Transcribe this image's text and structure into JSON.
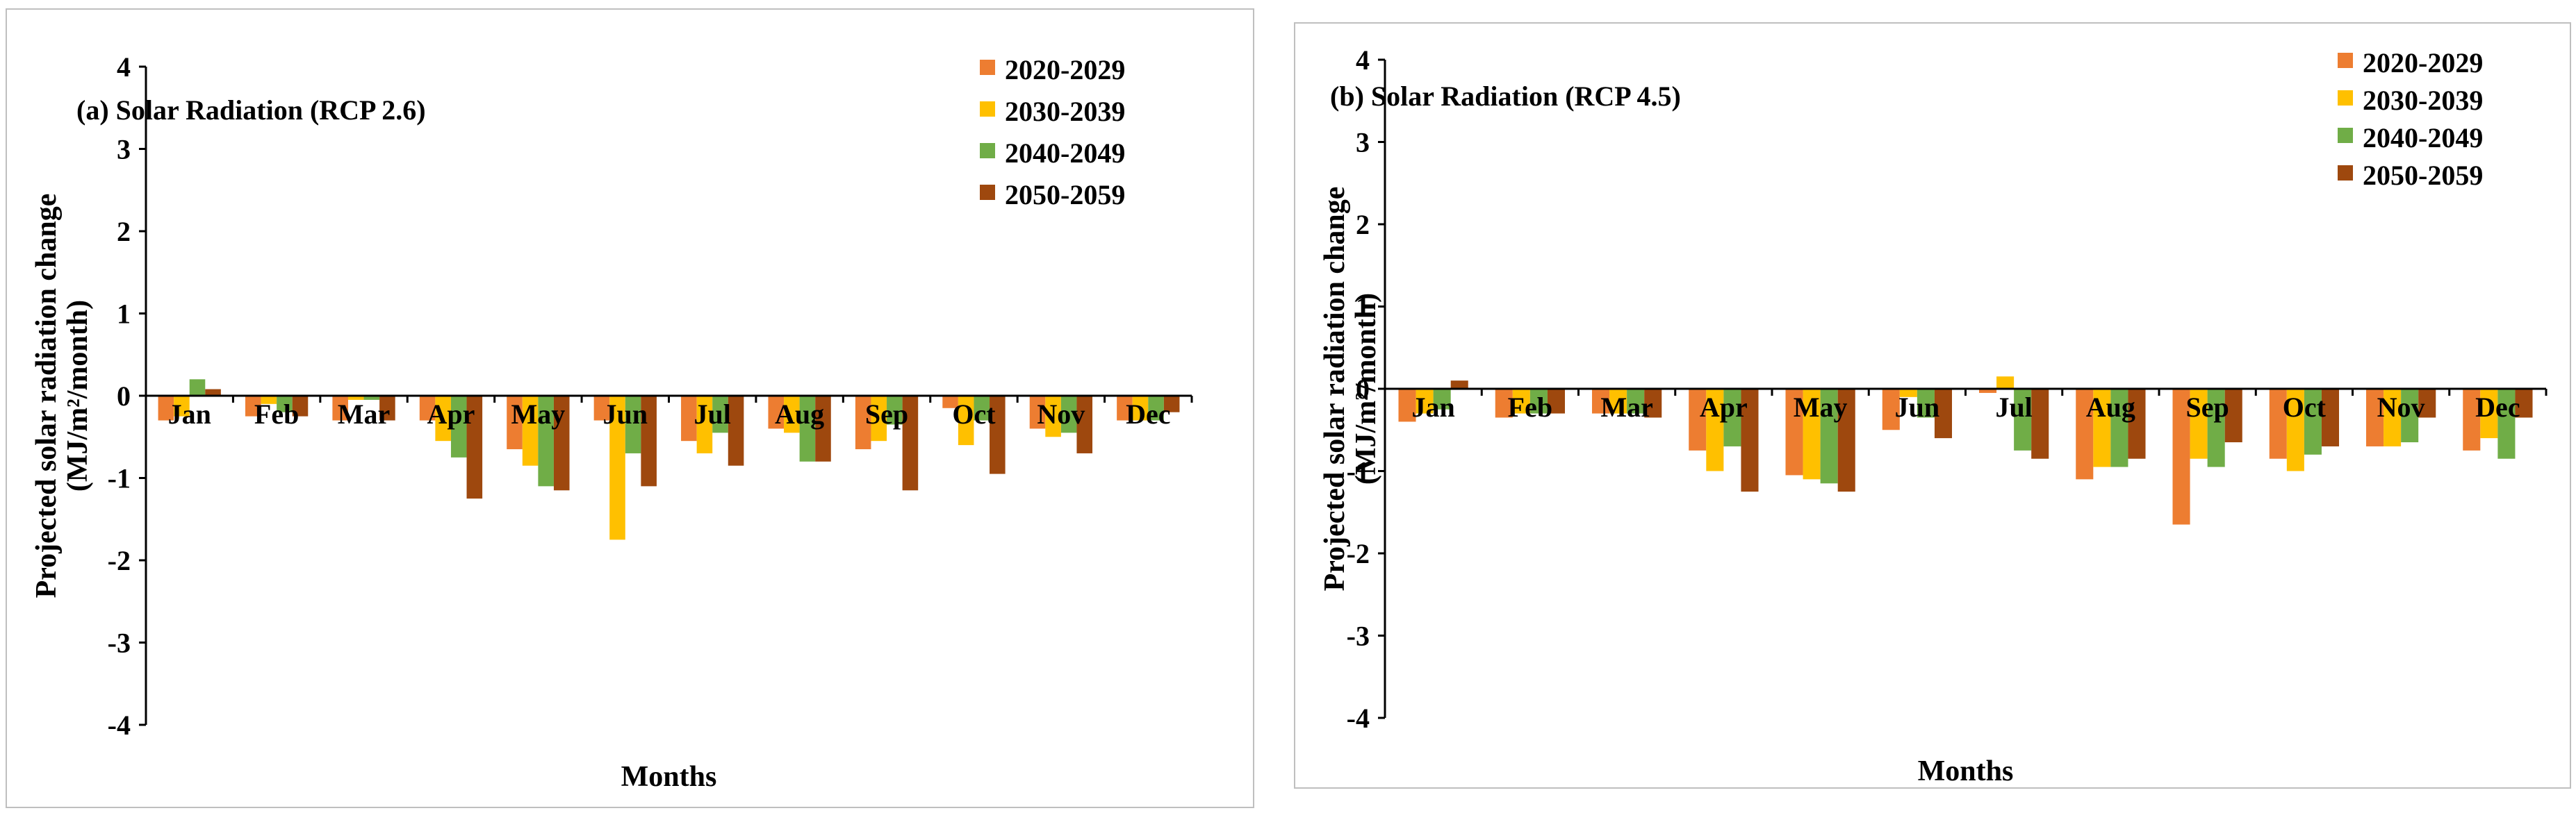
{
  "chart_data": [
    {
      "type": "bar",
      "title": "(a) Solar Radiation (RCP 2.6)",
      "xlabel": "Months",
      "ylabel": "Projected solar radiation change",
      "ylabel_units": "(MJ/m²/month)",
      "ylim": [
        -4,
        4
      ],
      "yticks": [
        "4",
        "3",
        "2",
        "1",
        "0",
        "-1",
        "-2",
        "-3",
        "-4"
      ],
      "categories": [
        "Jan",
        "Feb",
        "Mar",
        "Apr",
        "May",
        "Jun",
        "Jul",
        "Aug",
        "Sep",
        "Oct",
        "Nov",
        "Dec"
      ],
      "series": [
        {
          "name": "2020-2029",
          "color": "#ED7D31",
          "values": [
            -0.3,
            -0.25,
            -0.3,
            -0.3,
            -0.65,
            -0.3,
            -0.55,
            -0.4,
            -0.65,
            -0.15,
            -0.4,
            -0.3
          ]
        },
        {
          "name": "2030-2039",
          "color": "#FFC000",
          "values": [
            -0.25,
            -0.1,
            -0.05,
            -0.55,
            -0.85,
            -1.75,
            -0.7,
            -0.45,
            -0.55,
            -0.6,
            -0.5,
            -0.3
          ]
        },
        {
          "name": "2040-2049",
          "color": "#70AD47",
          "values": [
            0.2,
            -0.2,
            -0.05,
            -0.75,
            -1.1,
            -0.7,
            -0.45,
            -0.8,
            -0.35,
            -0.3,
            -0.45,
            -0.3
          ]
        },
        {
          "name": "2050-2059",
          "color": "#9E480E",
          "values": [
            0.08,
            -0.25,
            -0.3,
            -1.25,
            -1.15,
            -1.1,
            -0.85,
            -0.8,
            -1.15,
            -0.95,
            -0.7,
            -0.2
          ]
        }
      ]
    },
    {
      "type": "bar",
      "title": "(b) Solar Radiation (RCP 4.5)",
      "xlabel": "Months",
      "ylabel": "Projected solar radiation change",
      "ylabel_units": "(MJ/m²/month)",
      "ylim": [
        -4,
        4
      ],
      "yticks": [
        "4",
        "3",
        "2",
        "1",
        "0",
        "-1",
        "-2",
        "-3",
        "-4"
      ],
      "categories": [
        "Jan",
        "Feb",
        "Mar",
        "Apr",
        "May",
        "Jun",
        "Jul",
        "Aug",
        "Sep",
        "Oct",
        "Nov",
        "Dec"
      ],
      "series": [
        {
          "name": "2020-2029",
          "color": "#ED7D31",
          "values": [
            -0.4,
            -0.35,
            -0.3,
            -0.75,
            -1.05,
            -0.5,
            -0.05,
            -1.1,
            -1.65,
            -0.85,
            -0.7,
            -0.75
          ]
        },
        {
          "name": "2030-2039",
          "color": "#FFC000",
          "values": [
            -0.3,
            -0.3,
            -0.3,
            -1.0,
            -1.1,
            -0.1,
            0.15,
            -0.95,
            -0.85,
            -1.0,
            -0.7,
            -0.6
          ]
        },
        {
          "name": "2040-2049",
          "color": "#70AD47",
          "values": [
            -0.25,
            -0.3,
            -0.3,
            -0.7,
            -1.15,
            -0.35,
            -0.75,
            -0.95,
            -0.95,
            -0.8,
            -0.65,
            -0.85
          ]
        },
        {
          "name": "2050-2059",
          "color": "#9E480E",
          "values": [
            0.1,
            -0.3,
            -0.35,
            -1.25,
            -1.25,
            -0.6,
            -0.85,
            -0.85,
            -0.65,
            -0.7,
            -0.35,
            -0.35
          ]
        }
      ]
    }
  ]
}
